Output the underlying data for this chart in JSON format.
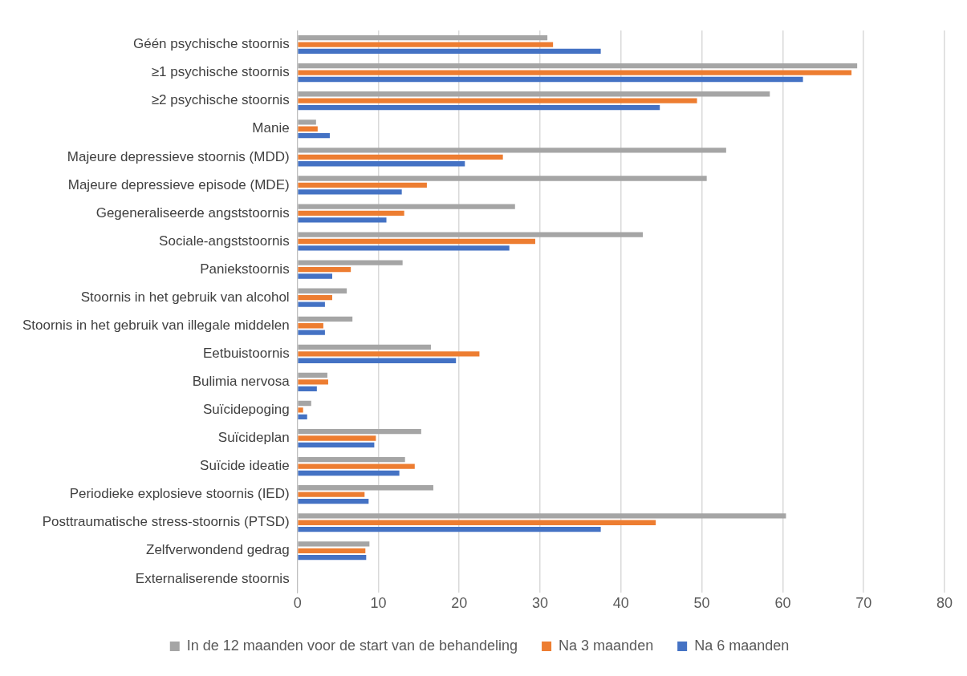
{
  "chart_data": {
    "type": "bar",
    "orientation": "horizontal",
    "categories": [
      "Géén psychische stoornis",
      "≥1 psychische stoornis",
      "≥2 psychische stoornis",
      "Manie",
      "Majeure depressieve stoornis (MDD)",
      "Majeure depressieve episode (MDE)",
      "Gegeneraliseerde angststoornis",
      "Sociale-angststoornis",
      "Paniekstoornis",
      "Stoornis in het gebruik van alcohol",
      "Stoornis in het gebruik van illegale middelen",
      "Eetbuistoornis",
      "Bulimia nervosa",
      "Suïcidepoging",
      "Suïcideplan",
      "Suïcide ideatie",
      "Periodieke explosieve stoornis (IED)",
      "Posttraumatische stress-stoornis (PTSD)",
      "Zelfverwondend gedrag",
      "Externaliserende stoornis"
    ],
    "series": [
      {
        "name": "In de 12 maanden voor de start van de behandeling",
        "color": "#a5a5a5",
        "values": [
          30.9,
          69.2,
          58.4,
          2.3,
          53.0,
          50.6,
          26.9,
          42.7,
          13.0,
          6.1,
          6.8,
          16.5,
          3.7,
          1.7,
          15.3,
          13.3,
          16.8,
          60.4,
          8.9,
          null
        ]
      },
      {
        "name": "Na 3 maanden",
        "color": "#ed7d31",
        "values": [
          31.6,
          68.5,
          49.4,
          2.5,
          25.4,
          16.0,
          13.2,
          29.4,
          6.6,
          4.3,
          3.2,
          22.5,
          3.8,
          0.7,
          9.7,
          14.5,
          8.3,
          44.3,
          8.4,
          null
        ]
      },
      {
        "name": "Na 6 maanden",
        "color": "#4472c4",
        "values": [
          37.5,
          62.5,
          44.8,
          4.0,
          20.7,
          12.9,
          11.0,
          26.2,
          4.3,
          3.4,
          3.4,
          19.6,
          2.4,
          1.2,
          9.5,
          12.6,
          8.8,
          37.5,
          8.5,
          null
        ]
      }
    ],
    "xlim": [
      0,
      80
    ],
    "xticks": [
      0,
      10,
      20,
      30,
      40,
      50,
      60,
      70,
      80
    ],
    "grid": "x",
    "legend": "bottom"
  }
}
